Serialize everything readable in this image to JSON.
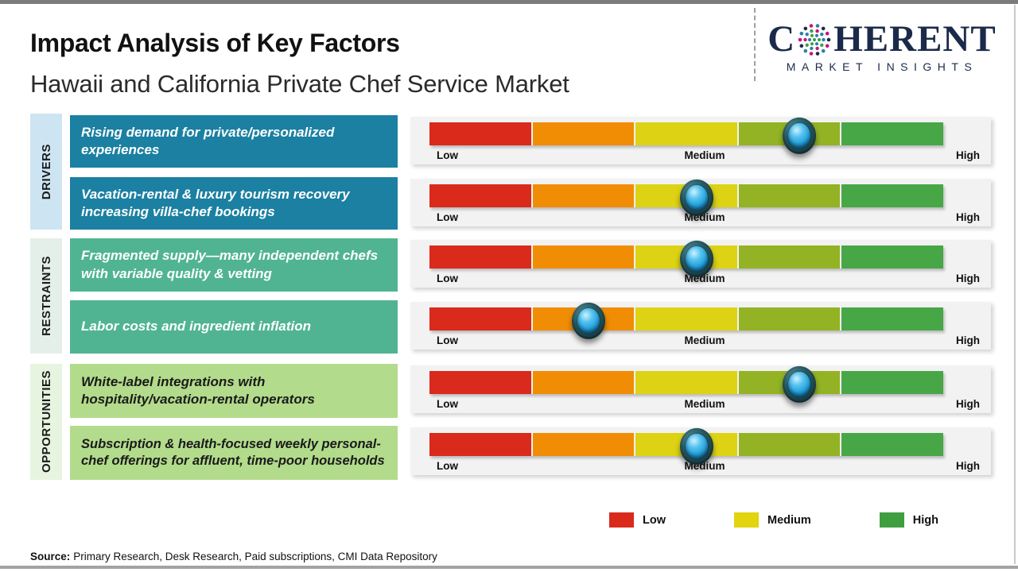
{
  "header": {
    "title": "Impact Analysis of Key Factors",
    "subtitle": "Hawaii and California Private Chef Service Market"
  },
  "logo": {
    "part1": "C",
    "part2": "HERENT",
    "tagline": "MARKET INSIGHTS",
    "brand_color": "#1b2a4a",
    "globe_icon_colors": [
      "#1b2a4a",
      "#c2187c",
      "#2e7fa8",
      "#3fa047"
    ]
  },
  "chart_data": {
    "type": "bar",
    "title": "Impact Analysis of Key Factors",
    "subtitle": "Hawaii and California Private Chef Service Market",
    "scale": {
      "labels": [
        "Low",
        "Medium",
        "High"
      ],
      "range_pct": [
        0,
        100
      ],
      "segment_colors": [
        "#d92a1c",
        "#f18d05",
        "#ddd314",
        "#93b324",
        "#47a747"
      ],
      "grid": false
    },
    "groups": [
      {
        "name": "DRIVERS",
        "strip_color": "#cde5f2",
        "box_color": "#1b80a1",
        "text_color": "#ffffff"
      },
      {
        "name": "RESTRAINTS",
        "strip_color": "#e4efe9",
        "box_color": "#50b493",
        "text_color": "#ffffff"
      },
      {
        "name": "OPPORTUNITIES",
        "strip_color": "#e7f4df",
        "box_color": "#b2db8b",
        "text_color": "#1a1a1a"
      }
    ],
    "rows": [
      {
        "group": "DRIVERS",
        "label": "Rising demand for private/personalized experiences",
        "impact_pct": 72,
        "impact_level": "Medium-High"
      },
      {
        "group": "DRIVERS",
        "label": "Vacation-rental & luxury tourism recovery increasing villa-chef bookings",
        "impact_pct": 52,
        "impact_level": "Medium"
      },
      {
        "group": "RESTRAINTS",
        "label": "Fragmented supply—many independent chefs with variable quality & vetting",
        "impact_pct": 52,
        "impact_level": "Medium"
      },
      {
        "group": "RESTRAINTS",
        "label": "Labor costs and ingredient inflation",
        "impact_pct": 31,
        "impact_level": "Low-Medium"
      },
      {
        "group": "OPPORTUNITIES",
        "label": "White-label integrations with hospitality/vacation-rental operators",
        "impact_pct": 72,
        "impact_level": "Medium-High"
      },
      {
        "group": "OPPORTUNITIES",
        "label": "Subscription & health-focused weekly personal-chef offerings for affluent, time-poor households",
        "impact_pct": 52,
        "impact_level": "Medium"
      }
    ]
  },
  "legend": {
    "items": [
      {
        "label": "Low",
        "color": "#d92a1c"
      },
      {
        "label": "Medium",
        "color": "#e2d40e"
      },
      {
        "label": "High",
        "color": "#3f9e3f"
      }
    ]
  },
  "source": {
    "prefix": "Source:",
    "text": "Primary Research, Desk Research, Paid subscriptions, CMI Data Repository"
  }
}
